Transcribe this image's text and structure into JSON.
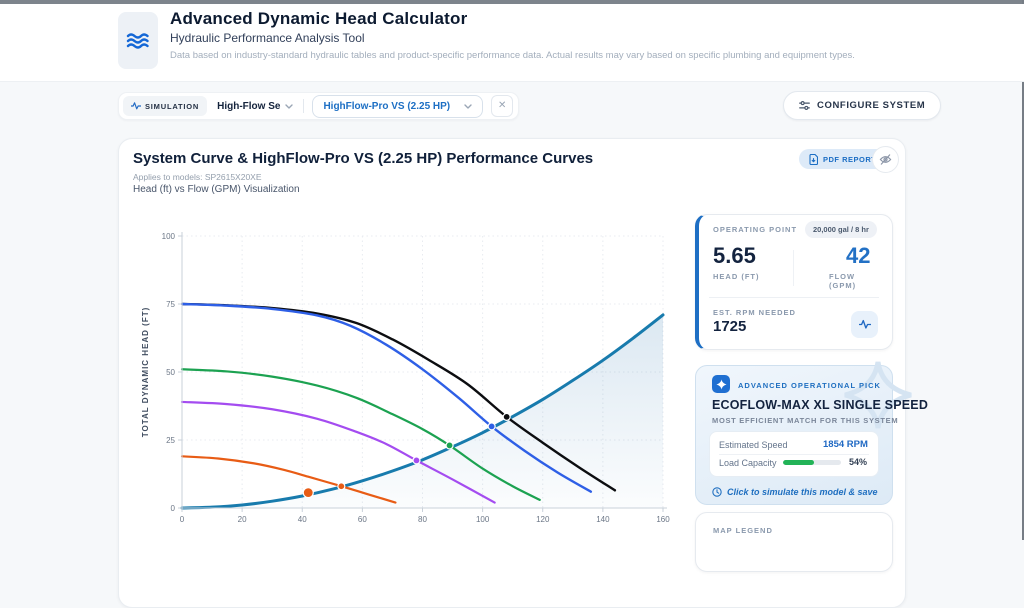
{
  "header": {
    "title": "Advanced Dynamic Head Calculator",
    "subtitle": "Hydraulic Performance Analysis Tool",
    "disclaimer": "Data based on industry-standard hydraulic tables and product-specific performance data. Actual results may vary based on specific plumbing and equipment types."
  },
  "toolbar": {
    "mode_badge": "SIMULATION",
    "preset_select": "High-Flow Se",
    "pump_select": "HighFlow-Pro VS (2.25 HP)",
    "close_label": "✕",
    "configure_button": "CONFIGURE SYSTEM"
  },
  "chart_card": {
    "title": "System Curve & HighFlow-Pro VS (2.25 HP) Performance Curves",
    "models_note": "Applies to models: SP2615X20XE",
    "subtitle": "Head (ft) vs Flow (GPM) Visualization",
    "pdf_button": "PDF REPORT"
  },
  "chart_data": {
    "type": "line",
    "title": "System Curve & HighFlow-Pro VS (2.25 HP) Performance Curves",
    "xlabel": "",
    "ylabel": "TOTAL DYNAMIC HEAD (FT)",
    "xlim": [
      0,
      160
    ],
    "ylim": [
      0,
      100
    ],
    "x_ticks": [
      0,
      20,
      40,
      60,
      80,
      100,
      120,
      140,
      160
    ],
    "y_ticks": [
      0,
      25,
      50,
      75,
      100
    ],
    "grid": "dotted",
    "series": [
      {
        "id": "system-curve",
        "color": "#187bad",
        "width": 3,
        "area": true,
        "points": [
          [
            0,
            0
          ],
          [
            10,
            0.3
          ],
          [
            20,
            1.1
          ],
          [
            30,
            2.5
          ],
          [
            40,
            4.4
          ],
          [
            50,
            6.9
          ],
          [
            60,
            10
          ],
          [
            70,
            13.6
          ],
          [
            80,
            17.7
          ],
          [
            90,
            22.5
          ],
          [
            100,
            27.7
          ],
          [
            110,
            33.6
          ],
          [
            120,
            39.9
          ],
          [
            130,
            46.9
          ],
          [
            140,
            54.3
          ],
          [
            150,
            62.4
          ],
          [
            160,
            71
          ]
        ]
      },
      {
        "id": "pump-curve-black",
        "color": "#0c0d10",
        "width": 2.4,
        "points": [
          [
            0,
            75
          ],
          [
            15,
            74.5
          ],
          [
            30,
            73.5
          ],
          [
            45,
            71.5
          ],
          [
            58,
            68
          ],
          [
            70,
            62
          ],
          [
            82,
            54.5
          ],
          [
            95,
            45.5
          ],
          [
            108,
            33.5
          ],
          [
            120,
            24
          ],
          [
            132,
            15
          ],
          [
            144,
            6.5
          ]
        ]
      },
      {
        "id": "pump-curve-blue",
        "color": "#2e5fe6",
        "width": 2.4,
        "points": [
          [
            0,
            75
          ],
          [
            15,
            74.4
          ],
          [
            30,
            73.2
          ],
          [
            45,
            70.8
          ],
          [
            56,
            67
          ],
          [
            68,
            60
          ],
          [
            80,
            51
          ],
          [
            92,
            40.5
          ],
          [
            103,
            30
          ],
          [
            114,
            21
          ],
          [
            125,
            13
          ],
          [
            136,
            6
          ]
        ]
      },
      {
        "id": "pump-curve-green",
        "color": "#1ca251",
        "width": 2.2,
        "points": [
          [
            0,
            51
          ],
          [
            15,
            50.2
          ],
          [
            30,
            48.3
          ],
          [
            45,
            45
          ],
          [
            58,
            40.5
          ],
          [
            70,
            34.5
          ],
          [
            80,
            29
          ],
          [
            89,
            23
          ],
          [
            100,
            14.5
          ],
          [
            110,
            8
          ],
          [
            119,
            3
          ]
        ]
      },
      {
        "id": "pump-curve-purple",
        "color": "#a44cf0",
        "width": 2.2,
        "points": [
          [
            0,
            39
          ],
          [
            15,
            38.2
          ],
          [
            30,
            36.3
          ],
          [
            45,
            32.8
          ],
          [
            58,
            28
          ],
          [
            68,
            23.5
          ],
          [
            78,
            17.5
          ],
          [
            90,
            10.5
          ],
          [
            104,
            2
          ]
        ]
      },
      {
        "id": "pump-curve-orange",
        "color": "#e85c15",
        "width": 2.2,
        "points": [
          [
            0,
            19
          ],
          [
            12,
            18.2
          ],
          [
            24,
            16.4
          ],
          [
            34,
            14
          ],
          [
            42,
            11.5
          ],
          [
            53,
            8
          ],
          [
            62,
            5
          ],
          [
            71,
            2
          ]
        ]
      }
    ],
    "markers": [
      {
        "id": "operating-point",
        "x": 42,
        "y": 5.65,
        "r": 5,
        "color": "#e85c15"
      },
      {
        "id": "intersect-orange",
        "x": 53,
        "y": 8,
        "r": 3.5,
        "color": "#e85c15"
      },
      {
        "id": "intersect-purple",
        "x": 78,
        "y": 17.5,
        "r": 3.5,
        "color": "#a44cf0"
      },
      {
        "id": "intersect-green",
        "x": 89,
        "y": 23,
        "r": 3.5,
        "color": "#1ca251"
      },
      {
        "id": "intersect-blue",
        "x": 103,
        "y": 30,
        "r": 3.5,
        "color": "#2e5fe6"
      },
      {
        "id": "intersect-black",
        "x": 108,
        "y": 33.5,
        "r": 3.5,
        "color": "#0c0d10"
      }
    ]
  },
  "operating_point": {
    "label": "OPERATING POINT",
    "badge": "20,000 gal / 8 hr",
    "head_value": "5.65",
    "head_label": "HEAD (FT)",
    "flow_value": "42",
    "flow_label": "FLOW (GPM)",
    "rpm_label": "EST. RPM NEEDED",
    "rpm_value": "1725"
  },
  "recommendation": {
    "badge": "ADVANCED OPERATIONAL PICK",
    "title": "ECOFLOW-MAX XL SINGLE SPEED",
    "subtitle": "MOST EFFICIENT MATCH FOR THIS SYSTEM",
    "speed_label": "Estimated Speed",
    "speed_value": "1854 RPM",
    "load_label": "Load Capacity",
    "load_percent": 54,
    "load_percent_label": "54%",
    "cta": "Click to simulate this model & save"
  },
  "legend_card": {
    "title": "MAP LEGEND"
  },
  "colors": {
    "accent_blue": "#1e6fc4",
    "navy_text": "#13233f",
    "muted_label": "#8a99ad",
    "system_curve": "#187bad",
    "pump_blue": "#2e5fe6",
    "pump_green": "#1ca251",
    "pump_purple": "#a44cf0",
    "pump_orange": "#e85c15",
    "pump_black": "#0c0d10",
    "progress_green": "#22b357"
  }
}
